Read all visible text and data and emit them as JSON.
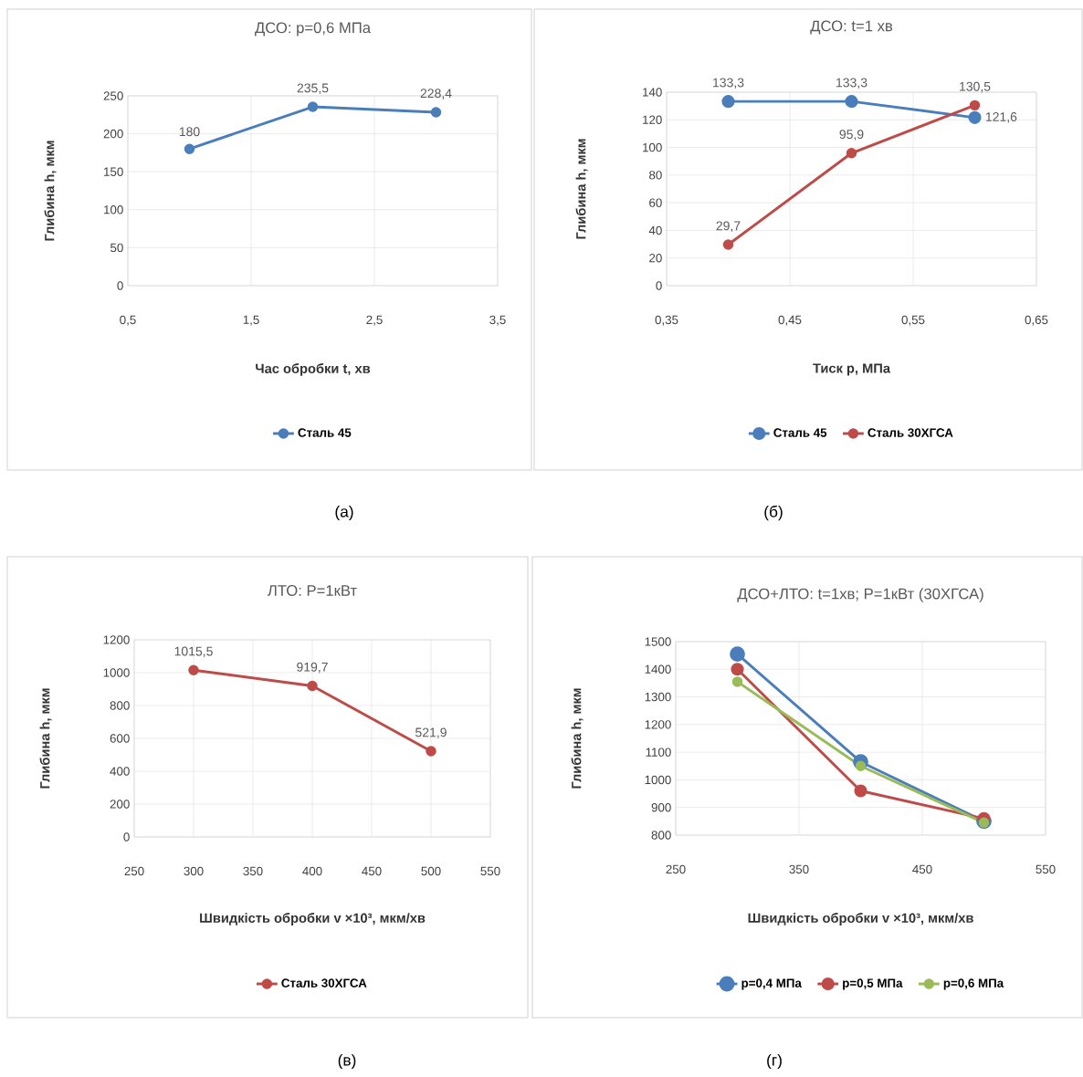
{
  "chart_data": [
    {
      "type": "line",
      "title": "ДСО: p=0,6 МПа",
      "xlabel": "Час обробки t, хв",
      "ylabel": "Глибина h, мкм",
      "x": [
        1,
        2,
        3
      ],
      "series": [
        {
          "name": "Сталь 45",
          "color": "#4a7ebb",
          "values": [
            180,
            235.5,
            228.4
          ],
          "value_labels": [
            "180",
            "235,5",
            "228,4"
          ]
        }
      ],
      "xlim": [
        0.5,
        3.5
      ],
      "ylim": [
        0,
        250
      ],
      "xticks": [
        {
          "value": 0.5,
          "label": "0,5"
        },
        {
          "value": 1.5,
          "label": "1,5"
        },
        {
          "value": 2.5,
          "label": "2,5"
        },
        {
          "value": 3.5,
          "label": "3,5"
        }
      ],
      "yticks": [
        0,
        50,
        100,
        150,
        200,
        250
      ],
      "grid": true,
      "legend": "bottom",
      "marker": "circle",
      "annotations": [
        "(а)"
      ]
    },
    {
      "type": "line",
      "title": "ДСО: t=1 хв",
      "xlabel": "Тиск p, МПа",
      "ylabel": "Глибина h, мкм",
      "x": [
        0.4,
        0.5,
        0.6
      ],
      "series": [
        {
          "name": "Сталь 45",
          "color": "#4a7ebb",
          "values": [
            133.3,
            133.3,
            121.6
          ],
          "value_labels": [
            "133,3",
            "133,3",
            "121,6"
          ]
        },
        {
          "name": "Сталь 30ХГСА",
          "color": "#be4b48",
          "values": [
            29.7,
            95.9,
            130.5
          ],
          "value_labels": [
            "29,7",
            "95,9",
            "130,5"
          ]
        }
      ],
      "xlim": [
        0.35,
        0.65
      ],
      "ylim": [
        0,
        140
      ],
      "xticks": [
        {
          "value": 0.35,
          "label": "0,35"
        },
        {
          "value": 0.45,
          "label": "0,45"
        },
        {
          "value": 0.55,
          "label": "0,55"
        },
        {
          "value": 0.65,
          "label": "0,65"
        }
      ],
      "yticks": [
        0,
        20,
        40,
        60,
        80,
        100,
        120,
        140
      ],
      "grid": true,
      "legend": "bottom",
      "marker": "circle",
      "annotations": [
        "(б)"
      ]
    },
    {
      "type": "line",
      "title": "ЛТО: P=1кВт",
      "xlabel": "Швидкість обробки v ×10³, мкм/хв",
      "ylabel": "Глибина h, мкм",
      "x": [
        300,
        400,
        500
      ],
      "series": [
        {
          "name": "Сталь 30ХГСА",
          "color": "#be4b48",
          "values": [
            1015.5,
            919.7,
            521.9
          ],
          "value_labels": [
            "1015,5",
            "919,7",
            "521,9"
          ]
        }
      ],
      "xlim": [
        250,
        550
      ],
      "ylim": [
        0,
        1200
      ],
      "xticks": [
        250,
        300,
        350,
        400,
        450,
        500,
        550
      ],
      "yticks": [
        0,
        200,
        400,
        600,
        800,
        1000,
        1200
      ],
      "grid": true,
      "legend": "bottom",
      "marker": "circle",
      "annotations": [
        "(в)"
      ]
    },
    {
      "type": "line",
      "title": "ДСО+ЛТО: t=1хв; P=1кВт (30ХГСА)",
      "xlabel": "Швидкість обробки v ×10³, мкм/хв",
      "ylabel": "Глибина h, мкм",
      "x": [
        300,
        400,
        500
      ],
      "series": [
        {
          "name": "p=0,4 МПа",
          "color": "#4a7ebb",
          "values": [
            1455,
            1065,
            850
          ]
        },
        {
          "name": "p=0,5 МПа",
          "color": "#be4b48",
          "values": [
            1400,
            960,
            860
          ]
        },
        {
          "name": "p=0,6 МПа",
          "color": "#9bbb59",
          "values": [
            1355,
            1050,
            845
          ]
        }
      ],
      "xlim": [
        250,
        550
      ],
      "ylim": [
        800,
        1500
      ],
      "xticks": [
        250,
        350,
        450,
        550
      ],
      "yticks": [
        800,
        900,
        1000,
        1100,
        1200,
        1300,
        1400,
        1500
      ],
      "grid": true,
      "legend": "bottom",
      "marker": "circle",
      "annotations": [
        "(г)"
      ]
    }
  ]
}
